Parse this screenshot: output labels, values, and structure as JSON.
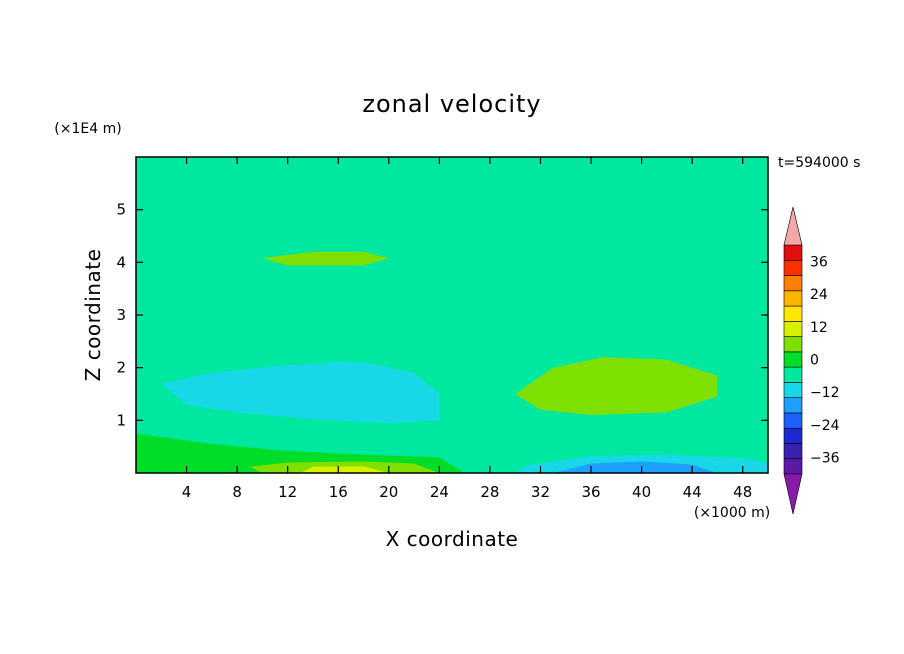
{
  "chart_data": {
    "type": "heatmap",
    "title": "zonal velocity",
    "xlabel": "X coordinate",
    "ylabel": "Z coordinate",
    "x_unit": "(×1000 m)",
    "y_unit": "(×1E4 m)",
    "time_label": "t=594000 s",
    "xlim": [
      0,
      50
    ],
    "ylim": [
      0,
      6
    ],
    "x_ticks": [
      4,
      8,
      12,
      16,
      20,
      24,
      28,
      32,
      36,
      40,
      44,
      48
    ],
    "y_ticks": [
      1,
      2,
      3,
      4,
      5
    ],
    "colorbar": {
      "ticks": [
        36,
        24,
        12,
        0,
        -12,
        -24,
        -36
      ],
      "levels": [
        -42,
        -36,
        -30,
        -24,
        -18,
        -12,
        -6,
        0,
        6,
        12,
        18,
        24,
        30,
        36,
        42
      ],
      "colors": [
        "#5a1aa6",
        "#3a1fb0",
        "#1e2ad0",
        "#2060ff",
        "#1ea0ff",
        "#18d8e8",
        "#00e8a0",
        "#00dd28",
        "#7ee000",
        "#d6f000",
        "#ffe800",
        "#ffb400",
        "#ff8000",
        "#ff3000",
        "#e01010"
      ],
      "under_color": "#8a1aa8",
      "over_color": "#f4a8a8"
    },
    "background_color": "#00e8a0",
    "regions": [
      {
        "level": 6,
        "points": [
          [
            0,
            5.95
          ],
          [
            50,
            5.95
          ],
          [
            50,
            5.6
          ],
          [
            44,
            5.72
          ],
          [
            36,
            5.55
          ],
          [
            30,
            5.72
          ],
          [
            24,
            5.55
          ],
          [
            18,
            5.68
          ],
          [
            10,
            5.5
          ],
          [
            4,
            5.65
          ],
          [
            0,
            5.58
          ]
        ]
      },
      {
        "level": 6,
        "points": [
          [
            0,
            4.92
          ],
          [
            6,
            5.0
          ],
          [
            14,
            4.86
          ],
          [
            22,
            5.0
          ],
          [
            30,
            4.86
          ],
          [
            38,
            5.0
          ],
          [
            44,
            4.88
          ],
          [
            50,
            5.02
          ],
          [
            50,
            4.8
          ],
          [
            42,
            4.72
          ],
          [
            34,
            4.8
          ],
          [
            26,
            4.7
          ],
          [
            18,
            4.8
          ],
          [
            10,
            4.68
          ],
          [
            0,
            4.76
          ]
        ]
      },
      {
        "level": 6,
        "points": [
          [
            0,
            4.38
          ],
          [
            10,
            4.22
          ],
          [
            20,
            4.3
          ],
          [
            30,
            4.12
          ],
          [
            40,
            4.2
          ],
          [
            50,
            4.15
          ],
          [
            50,
            3.66
          ],
          [
            40,
            3.72
          ],
          [
            30,
            3.62
          ],
          [
            20,
            3.72
          ],
          [
            10,
            3.6
          ],
          [
            0,
            3.72
          ]
        ]
      },
      {
        "level": 8,
        "points": [
          [
            10,
            4.08
          ],
          [
            14,
            4.2
          ],
          [
            18,
            4.2
          ],
          [
            20,
            4.08
          ],
          [
            18,
            3.94
          ],
          [
            12,
            3.94
          ]
        ]
      },
      {
        "level": 6,
        "points": [
          [
            0,
            3.05
          ],
          [
            10,
            2.9
          ],
          [
            20,
            3.05
          ],
          [
            30,
            2.85
          ],
          [
            40,
            3.0
          ],
          [
            50,
            2.9
          ],
          [
            50,
            2.62
          ],
          [
            40,
            2.72
          ],
          [
            30,
            2.52
          ],
          [
            20,
            2.7
          ],
          [
            10,
            2.58
          ],
          [
            0,
            2.66
          ]
        ]
      },
      {
        "level": 6,
        "points": [
          [
            0,
            2.3
          ],
          [
            4,
            2.35
          ],
          [
            10,
            2.05
          ],
          [
            18,
            2.2
          ],
          [
            24,
            2.35
          ],
          [
            26,
            2.1
          ],
          [
            28,
            1.5
          ],
          [
            28.5,
            0.9
          ],
          [
            27,
            0.3
          ],
          [
            26,
            0.0
          ],
          [
            24,
            0.0
          ],
          [
            22,
            0.35
          ],
          [
            16,
            0.45
          ],
          [
            10,
            0.7
          ],
          [
            4,
            1.0
          ],
          [
            0,
            1.2
          ]
        ]
      },
      {
        "level": 6,
        "points": [
          [
            26,
            0.0
          ],
          [
            27,
            0.3
          ],
          [
            28.5,
            0.9
          ],
          [
            29,
            1.6
          ],
          [
            31,
            2.2
          ],
          [
            34,
            2.45
          ],
          [
            40,
            2.35
          ],
          [
            46,
            2.15
          ],
          [
            50,
            2.0
          ],
          [
            50,
            0.2
          ],
          [
            44,
            0.45
          ],
          [
            36,
            0.42
          ],
          [
            30,
            0.3
          ],
          [
            28,
            0.0
          ]
        ]
      },
      {
        "level": 5,
        "points": [
          [
            2,
            1.7
          ],
          [
            6,
            1.9
          ],
          [
            12,
            2.05
          ],
          [
            18,
            2.1
          ],
          [
            22,
            1.9
          ],
          [
            24,
            1.5
          ],
          [
            24,
            1.0
          ],
          [
            20,
            0.95
          ],
          [
            14,
            1.02
          ],
          [
            8,
            1.15
          ],
          [
            4,
            1.3
          ]
        ]
      },
      {
        "level": 5,
        "points": [
          [
            12,
            1.95
          ],
          [
            16,
            2.12
          ],
          [
            20,
            2.02
          ],
          [
            19,
            1.78
          ],
          [
            14,
            1.74
          ]
        ]
      },
      {
        "level": 8,
        "points": [
          [
            30,
            1.5
          ],
          [
            33,
            2.0
          ],
          [
            37,
            2.2
          ],
          [
            42,
            2.15
          ],
          [
            46,
            1.85
          ],
          [
            46,
            1.45
          ],
          [
            42,
            1.15
          ],
          [
            36,
            1.1
          ],
          [
            32,
            1.2
          ]
        ]
      },
      {
        "level": 7,
        "points": [
          [
            0,
            0.75
          ],
          [
            6,
            0.55
          ],
          [
            12,
            0.42
          ],
          [
            18,
            0.35
          ],
          [
            24,
            0.3
          ],
          [
            26,
            0.0
          ],
          [
            0,
            0.0
          ]
        ]
      },
      {
        "level": 8,
        "points": [
          [
            9,
            0.12
          ],
          [
            12,
            0.2
          ],
          [
            18,
            0.22
          ],
          [
            22,
            0.18
          ],
          [
            24,
            0.0
          ],
          [
            10,
            0.0
          ]
        ]
      },
      {
        "level": 9,
        "points": [
          [
            14,
            0.12
          ],
          [
            18,
            0.13
          ],
          [
            20,
            0.0
          ],
          [
            13,
            0.0
          ]
        ]
      },
      {
        "level": 5,
        "points": [
          [
            30,
            0.0
          ],
          [
            31,
            0.15
          ],
          [
            36,
            0.32
          ],
          [
            42,
            0.35
          ],
          [
            48,
            0.28
          ],
          [
            50,
            0.2
          ],
          [
            50,
            0.0
          ]
        ]
      },
      {
        "level": 4,
        "points": [
          [
            33,
            0.0
          ],
          [
            36,
            0.18
          ],
          [
            40,
            0.22
          ],
          [
            44,
            0.16
          ],
          [
            46,
            0.0
          ]
        ]
      }
    ]
  }
}
